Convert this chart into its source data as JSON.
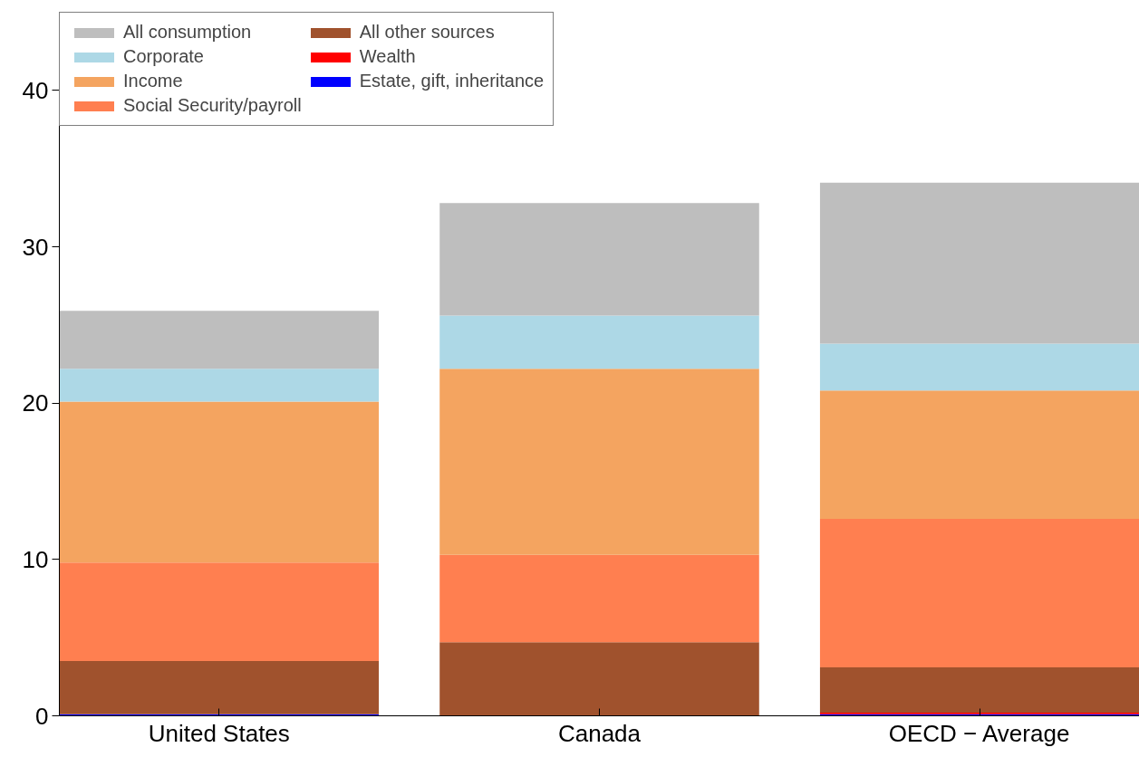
{
  "chart_data": {
    "type": "bar",
    "stacked": true,
    "categories": [
      "United States",
      "Canada",
      "OECD − Average"
    ],
    "ylim": [
      0,
      45
    ],
    "yticks": [
      0,
      10,
      20,
      30,
      40
    ],
    "grid": false,
    "legend": "top left",
    "series": [
      {
        "name": "Estate, gift, inheritance",
        "color": "#0000ff",
        "values": [
          0.1,
          0,
          0.1
        ]
      },
      {
        "name": "Wealth",
        "color": "#ff0000",
        "values": [
          0,
          0,
          0.1
        ]
      },
      {
        "name": "All other sources",
        "color": "#a0522d",
        "values": [
          3.4,
          4.7,
          2.9
        ]
      },
      {
        "name": "Social Security/payroll",
        "color": "#ff7f50",
        "values": [
          6.3,
          5.6,
          9.5
        ]
      },
      {
        "name": "Income",
        "color": "#f4a460",
        "values": [
          10.3,
          11.9,
          8.2
        ]
      },
      {
        "name": "Corporate",
        "color": "#add8e6",
        "values": [
          2.1,
          3.4,
          3.0
        ]
      },
      {
        "name": "All consumption",
        "color": "#bebebe",
        "values": [
          3.7,
          7.2,
          10.3
        ]
      }
    ]
  }
}
